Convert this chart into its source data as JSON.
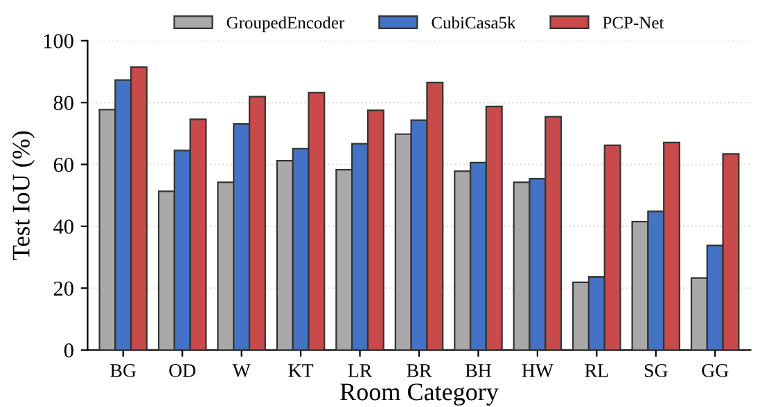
{
  "chart_data": {
    "type": "bar",
    "xlabel": "Room Category",
    "ylabel": "Test IoU (%)",
    "categories": [
      "BG",
      "OD",
      "W",
      "KT",
      "LR",
      "BR",
      "BH",
      "HW",
      "RL",
      "SG",
      "GG"
    ],
    "series": [
      {
        "name": "GroupedEncoder",
        "color": "#a9a9a9",
        "values": [
          77.7,
          51.3,
          54.2,
          61.2,
          58.3,
          69.8,
          57.8,
          54.2,
          21.9,
          41.5,
          23.3
        ]
      },
      {
        "name": "CubiCasa5k",
        "color": "#4472c4",
        "values": [
          87.3,
          64.5,
          73.1,
          65.1,
          66.7,
          74.3,
          60.6,
          55.4,
          23.6,
          44.8,
          33.8
        ]
      },
      {
        "name": "PCP-Net",
        "color": "#c94a4a",
        "values": [
          91.5,
          74.6,
          81.9,
          83.2,
          77.5,
          86.5,
          78.7,
          75.4,
          66.2,
          67.1,
          63.4
        ]
      }
    ],
    "ylim": [
      0,
      100
    ],
    "yticks": [
      0,
      20,
      40,
      60,
      80,
      100
    ],
    "grid": "y",
    "legend": "top"
  }
}
